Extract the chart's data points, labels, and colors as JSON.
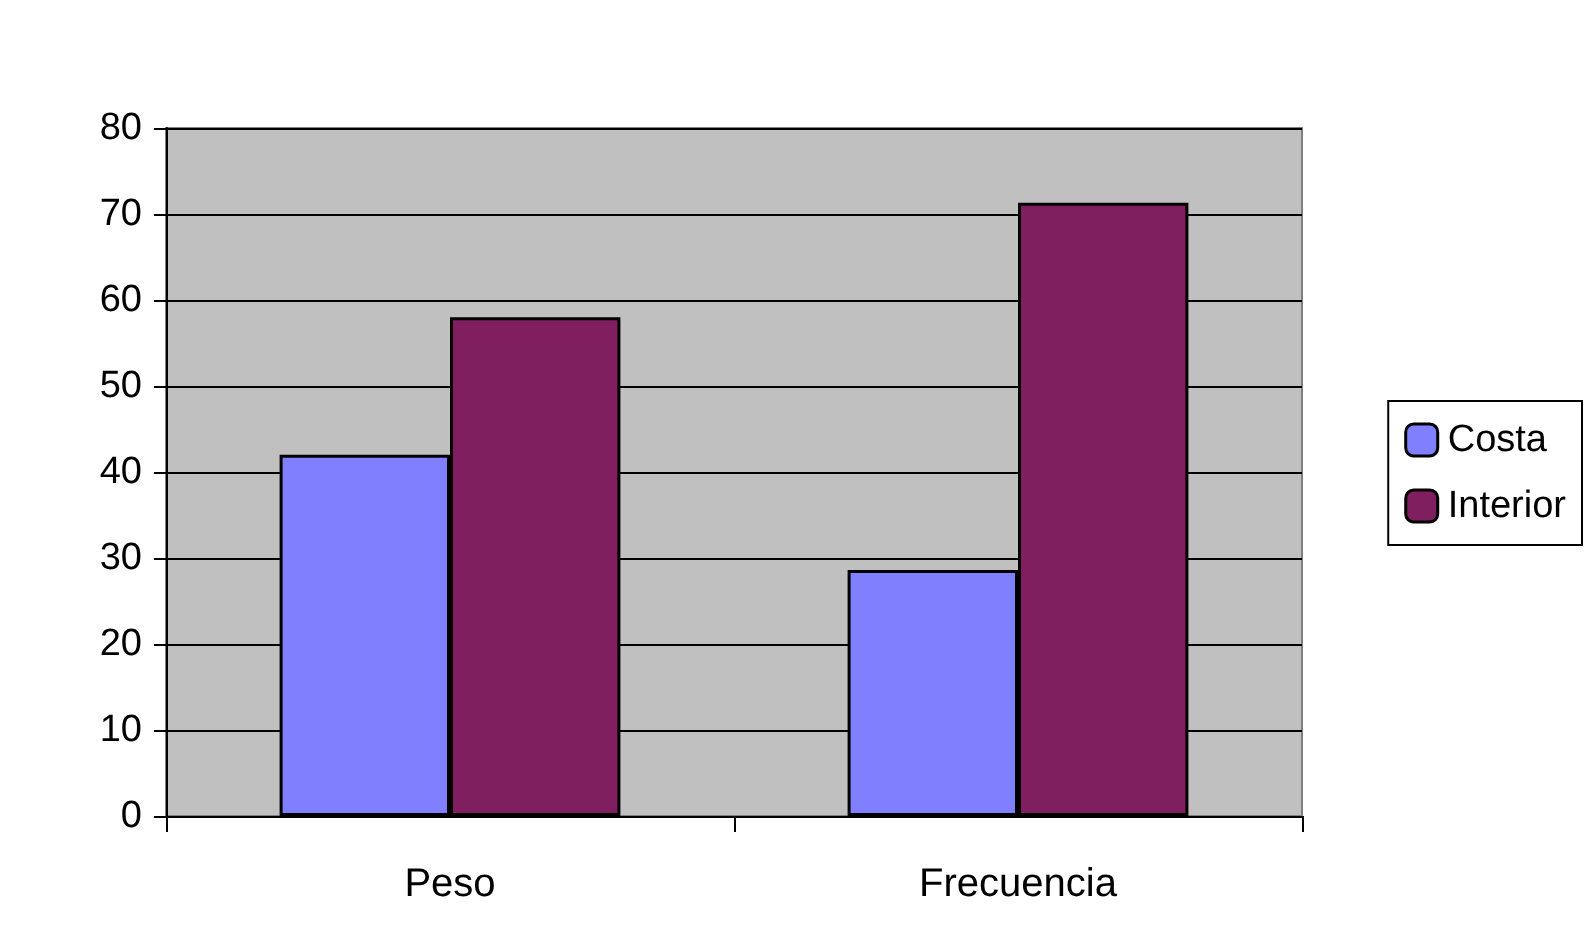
{
  "chart_data": {
    "type": "bar",
    "categories": [
      "Peso",
      "Frecuencia"
    ],
    "series": [
      {
        "name": "Costa",
        "color": "#8080ff",
        "values": [
          42,
          28.6
        ]
      },
      {
        "name": "Interior",
        "color": "#7f1f5f",
        "values": [
          58,
          71.3
        ]
      }
    ],
    "ylim": [
      0,
      80
    ],
    "yticks": [
      0,
      10,
      20,
      30,
      40,
      50,
      60,
      70,
      80
    ],
    "grid": "y",
    "legend": "right"
  }
}
